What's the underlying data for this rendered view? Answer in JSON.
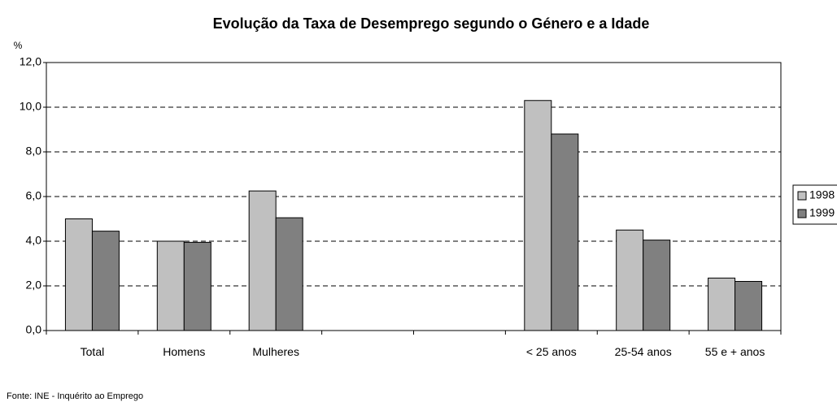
{
  "chart_data": {
    "type": "bar",
    "title": "Evolução da Taxa de Desemprego segundo o Género e a Idade",
    "y_label": "%",
    "source": "Fonte: INE - Inquérito ao Emprego",
    "categories": [
      "Total",
      "Homens",
      "Mulheres",
      null,
      null,
      "< 25 anos",
      "25-54 anos",
      "55 e + anos"
    ],
    "series": [
      {
        "name": "1998",
        "color": "#c0c0c0",
        "values": [
          5.0,
          4.0,
          6.25,
          null,
          null,
          10.3,
          4.5,
          2.35
        ]
      },
      {
        "name": "1999",
        "color": "#808080",
        "values": [
          4.45,
          3.95,
          5.05,
          null,
          null,
          8.8,
          4.05,
          2.2
        ]
      }
    ],
    "ylim": [
      0,
      12
    ],
    "yticks": [
      {
        "value": 0,
        "label": "0,0"
      },
      {
        "value": 2,
        "label": "2,0"
      },
      {
        "value": 4,
        "label": "4,0"
      },
      {
        "value": 6,
        "label": "6,0"
      },
      {
        "value": 8,
        "label": "8,0"
      },
      {
        "value": 10,
        "label": "10,0"
      },
      {
        "value": 12,
        "label": "12,0"
      }
    ],
    "grid": true,
    "legend": "right"
  }
}
